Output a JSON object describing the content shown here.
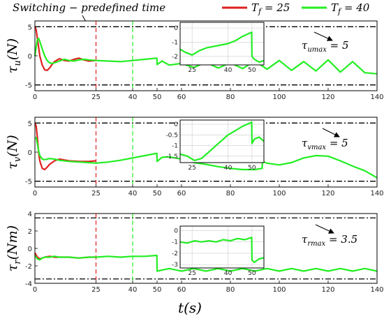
{
  "figure": {
    "top_annotation": "Switching − predefined time",
    "legend": [
      {
        "label": "T_f = 25",
        "color": "#e02020"
      },
      {
        "label": "T_f = 40",
        "color": "#22ee22"
      }
    ],
    "xlabel": "t(s)"
  },
  "chart_data": [
    {
      "type": "line",
      "ylabel": "τu(N)",
      "xlim": [
        0,
        140
      ],
      "ylim": [
        -6,
        6
      ],
      "yticks": [
        5,
        0,
        -5
      ],
      "xticks": [
        0,
        25,
        40,
        50,
        60,
        80,
        100,
        120,
        140
      ],
      "limits": {
        "upper": 5,
        "lower": -5
      },
      "switch_lines": [
        {
          "x": 25,
          "color": "#e02020"
        },
        {
          "x": 40,
          "color": "#22ee22"
        }
      ],
      "annotation": {
        "text": "τumax = 5",
        "sub": "umax",
        "value": "= 5"
      },
      "series": [
        {
          "name": "T_f = 25",
          "color": "#e02020",
          "x": [
            0,
            0.5,
            1,
            1.5,
            2,
            3,
            4,
            5,
            6,
            7,
            8,
            10,
            12,
            14,
            16,
            18,
            20,
            22,
            25
          ],
          "y": [
            5,
            4.5,
            3,
            1.5,
            0,
            -1.6,
            -2.4,
            -2.5,
            -2.1,
            -1.5,
            -1.0,
            -0.5,
            -0.8,
            -0.9,
            -0.6,
            -0.4,
            -0.7,
            -0.9,
            -0.8
          ]
        },
        {
          "name": "T_f = 40",
          "color": "#22ee22",
          "x": [
            0,
            0.5,
            1,
            1.5,
            2,
            3,
            4,
            5,
            6,
            7,
            8,
            10,
            12,
            14,
            16,
            18,
            20,
            22,
            25,
            30,
            35,
            40,
            45,
            49.9,
            50,
            52,
            55,
            60,
            65,
            70,
            75,
            80,
            85,
            90,
            95,
            100,
            105,
            110,
            115,
            120,
            125,
            130,
            135,
            140
          ],
          "y": [
            0,
            1.5,
            2.8,
            3.0,
            2.5,
            1.2,
            0,
            -0.8,
            -1.2,
            -1.3,
            -1.2,
            -0.9,
            -0.6,
            -0.8,
            -0.9,
            -0.7,
            -0.6,
            -0.7,
            -0.8,
            -0.9,
            -1.0,
            -0.8,
            -0.6,
            -0.4,
            -1.5,
            -0.9,
            -1.6,
            -1.3,
            -2.0,
            -1.1,
            -2.1,
            -1.2,
            -2.2,
            -0.9,
            -2.3,
            -0.8,
            -2.5,
            -1.0,
            -2.6,
            -0.7,
            -2.8,
            -1.0,
            -2.9,
            -3.1
          ]
        }
      ],
      "inset": {
        "xticks": [
          25,
          40,
          50
        ],
        "yticks": [
          0,
          -1,
          -2
        ],
        "xlim": [
          20,
          55
        ],
        "ylim": [
          -2.6,
          0.4
        ],
        "x": [
          20,
          22,
          25,
          28,
          31,
          34,
          37,
          40,
          43,
          46,
          49.9,
          50,
          51,
          53,
          55
        ],
        "y": [
          -1.5,
          -1.7,
          -1.9,
          -1.6,
          -1.4,
          -1.3,
          -1.2,
          -1.1,
          -0.9,
          -0.6,
          -0.3,
          -2.0,
          -2.2,
          -2.4,
          -2.3
        ]
      }
    },
    {
      "type": "line",
      "ylabel": "τv(N)",
      "xlim": [
        0,
        140
      ],
      "ylim": [
        -6,
        6
      ],
      "yticks": [
        5,
        0,
        -5
      ],
      "xticks": [
        0,
        25,
        40,
        50,
        60,
        80,
        100,
        120,
        140
      ],
      "limits": {
        "upper": 5,
        "lower": -5
      },
      "switch_lines": [
        {
          "x": 25,
          "color": "#e02020"
        },
        {
          "x": 40,
          "color": "#22ee22"
        }
      ],
      "annotation": {
        "text": "τvmax = 5",
        "sub": "vmax",
        "value": "= 5"
      },
      "series": [
        {
          "name": "T_f = 25",
          "color": "#e02020",
          "x": [
            0,
            0.5,
            1,
            1.5,
            2,
            3,
            4,
            5,
            6,
            8,
            10,
            14,
            18,
            22,
            25
          ],
          "y": [
            5,
            4.5,
            2.5,
            0,
            -1.5,
            -2.8,
            -3.0,
            -2.6,
            -2.1,
            -1.5,
            -1.2,
            -1.5,
            -1.6,
            -1.6,
            -1.5
          ]
        },
        {
          "name": "T_f = 40",
          "color": "#22ee22",
          "x": [
            0,
            0.5,
            1,
            1.5,
            2,
            3,
            4,
            5,
            6,
            8,
            10,
            14,
            18,
            22,
            25,
            30,
            35,
            40,
            45,
            49.9,
            50,
            52,
            55,
            60,
            65,
            70,
            75,
            80,
            85,
            90,
            93,
            93.1,
            95,
            100,
            105,
            110,
            115,
            120,
            125,
            130,
            135,
            140
          ],
          "y": [
            2.5,
            2.5,
            1.5,
            0.2,
            -0.6,
            -1.2,
            -1.3,
            -1.2,
            -1.1,
            -1.2,
            -1.4,
            -1.6,
            -1.7,
            -1.8,
            -1.9,
            -1.7,
            -1.4,
            -1.0,
            -0.6,
            -0.2,
            -1.6,
            -0.9,
            -0.8,
            -1.2,
            -1.8,
            -2.1,
            -2.5,
            -2.8,
            -3.0,
            -3.0,
            -2.8,
            -1.6,
            -1.9,
            -2.2,
            -1.8,
            -1.0,
            -0.6,
            -0.7,
            -1.5,
            -2.4,
            -3.2,
            -4.4
          ]
        }
      ],
      "inset": {
        "xticks": [
          25,
          40,
          50
        ],
        "yticks": [
          0,
          -0.5,
          -1,
          -1.5
        ],
        "xlim": [
          20,
          55
        ],
        "ylim": [
          -1.8,
          0.2
        ],
        "x": [
          20,
          23,
          26,
          29,
          32,
          35,
          38,
          40,
          43,
          46,
          49.9,
          50,
          51,
          53,
          55
        ],
        "y": [
          -1.4,
          -1.5,
          -1.7,
          -1.6,
          -1.3,
          -1.0,
          -0.7,
          -0.5,
          -0.3,
          -0.1,
          0.1,
          -0.9,
          -0.7,
          -0.6,
          -0.8
        ]
      }
    },
    {
      "type": "line",
      "ylabel": "τr(Nm)",
      "xlim": [
        0,
        140
      ],
      "ylim": [
        -4,
        4
      ],
      "yticks": [
        4,
        2,
        0,
        -2,
        -4
      ],
      "xticks": [
        0,
        25,
        40,
        50,
        60,
        80,
        100,
        120,
        140
      ],
      "limits": {
        "upper": 3.5,
        "lower": -3.5
      },
      "switch_lines": [
        {
          "x": 25,
          "color": "#e02020"
        },
        {
          "x": 40,
          "color": "#22ee22"
        }
      ],
      "annotation": {
        "text": "τrmax = 3.5",
        "sub": "rmax",
        "value": "= 3.5"
      },
      "series": [
        {
          "name": "T_f = 25",
          "color": "#e02020",
          "x": [
            0,
            1,
            2,
            3,
            4,
            6,
            8,
            10,
            14,
            18,
            22,
            25
          ],
          "y": [
            -0.5,
            -1.0,
            -1.2,
            -1.1,
            -1.0,
            -0.9,
            -1.0,
            -1.0,
            -1.0,
            -1.1,
            -1.0,
            -1.0
          ]
        },
        {
          "name": "T_f = 40",
          "color": "#22ee22",
          "x": [
            0,
            1,
            2,
            3,
            4,
            6,
            8,
            10,
            14,
            18,
            22,
            25,
            30,
            35,
            40,
            45,
            49.9,
            50,
            55,
            60,
            65,
            70,
            75,
            80,
            85,
            90,
            95,
            100,
            105,
            110,
            115,
            120,
            125,
            130,
            135,
            140
          ],
          "y": [
            -0.8,
            -1.2,
            -1.3,
            -1.1,
            -1.0,
            -1.0,
            -0.9,
            -1.0,
            -1.0,
            -1.1,
            -1.0,
            -1.0,
            -0.9,
            -1.0,
            -0.9,
            -0.9,
            -0.8,
            -2.6,
            -2.3,
            -2.6,
            -2.3,
            -2.6,
            -2.3,
            -2.6,
            -2.3,
            -2.6,
            -2.3,
            -2.6,
            -2.3,
            -2.6,
            -2.3,
            -2.6,
            -2.3,
            -2.6,
            -2.3,
            -2.6
          ]
        }
      ],
      "inset": {
        "xticks": [
          25,
          40,
          50
        ],
        "yticks": [
          0,
          -1,
          -2,
          -3
        ],
        "xlim": [
          20,
          55
        ],
        "ylim": [
          -3.3,
          0.4
        ],
        "x": [
          20,
          23,
          26,
          29,
          32,
          35,
          38,
          41,
          44,
          47,
          49.9,
          50,
          51,
          53,
          55
        ],
        "y": [
          -1.0,
          -1.1,
          -0.9,
          -1.0,
          -0.9,
          -1.0,
          -0.8,
          -0.9,
          -0.7,
          -0.8,
          -0.6,
          -2.6,
          -2.8,
          -2.5,
          -2.4
        ]
      }
    }
  ]
}
